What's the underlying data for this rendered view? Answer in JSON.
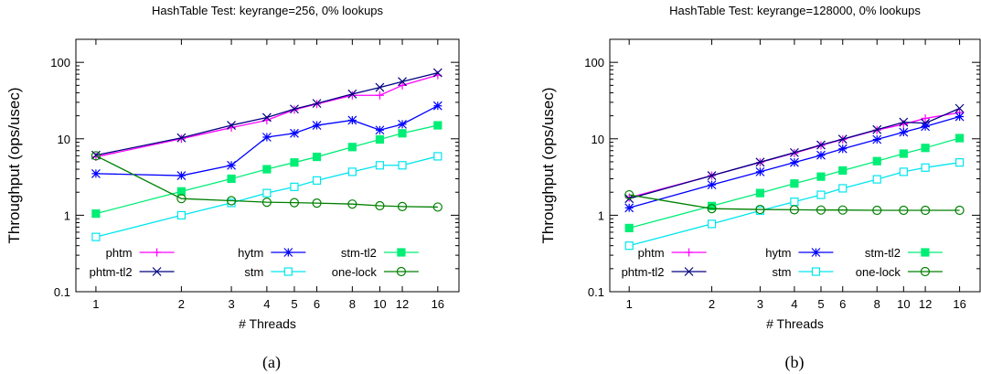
{
  "chart_data": [
    {
      "type": "line",
      "title": "HashTable Test: keyrange=256, 0% lookups",
      "xlabel": "# Threads",
      "ylabel": "Throughput (ops/usec)",
      "caption": "(a)",
      "x_scale": "log",
      "y_scale": "log",
      "xlim": [
        0.85,
        19
      ],
      "ylim": [
        0.1,
        200
      ],
      "x_ticks": [
        1,
        2,
        3,
        4,
        5,
        6,
        8,
        10,
        12,
        16
      ],
      "y_ticks": [
        0.1,
        1,
        10,
        100
      ],
      "y_tick_labels": [
        "0.1",
        "1",
        "10",
        "100"
      ],
      "legend_position": "bottom",
      "x": [
        1,
        2,
        3,
        4,
        5,
        6,
        8,
        10,
        12,
        16
      ],
      "series": [
        {
          "name": "phtm",
          "color": "#ff00ff",
          "marker": "plus",
          "values": [
            5.8,
            10.0,
            14.0,
            17.5,
            24.0,
            28.5,
            37.0,
            37.0,
            50.0,
            68.0
          ]
        },
        {
          "name": "phtm-tl2",
          "color": "#000080",
          "marker": "x",
          "values": [
            6.1,
            10.3,
            15.0,
            19.0,
            24.5,
            29.0,
            38.5,
            47.0,
            56.0,
            73.0
          ]
        },
        {
          "name": "hytm",
          "color": "#0000ff",
          "marker": "asterisk",
          "values": [
            3.5,
            3.3,
            4.5,
            10.5,
            11.8,
            15.0,
            17.5,
            13.0,
            15.5,
            27.0
          ]
        },
        {
          "name": "stm",
          "color": "#00e5ee",
          "marker": "open-square",
          "values": [
            0.52,
            1.0,
            1.45,
            1.95,
            2.35,
            2.85,
            3.7,
            4.5,
            4.5,
            5.9
          ]
        },
        {
          "name": "stm-tl2",
          "color": "#00ee76",
          "marker": "filled-square",
          "values": [
            1.05,
            2.05,
            3.0,
            4.0,
            4.9,
            5.8,
            7.8,
            9.8,
            11.8,
            15.0
          ]
        },
        {
          "name": "one-lock",
          "color": "#008000",
          "marker": "open-circle",
          "values": [
            6.0,
            1.65,
            1.55,
            1.48,
            1.46,
            1.44,
            1.4,
            1.33,
            1.3,
            1.28
          ]
        }
      ]
    },
    {
      "type": "line",
      "title": "HashTable Test: keyrange=128000, 0% lookups",
      "xlabel": "# Threads",
      "ylabel": "Throughput (ops/usec)",
      "caption": "(b)",
      "x_scale": "log",
      "y_scale": "log",
      "xlim": [
        0.85,
        19
      ],
      "ylim": [
        0.1,
        200
      ],
      "x_ticks": [
        1,
        2,
        3,
        4,
        5,
        6,
        8,
        10,
        12,
        16
      ],
      "y_ticks": [
        0.1,
        1,
        10,
        100
      ],
      "y_tick_labels": [
        "0.1",
        "1",
        "10",
        "100"
      ],
      "legend_position": "bottom",
      "x": [
        1,
        2,
        3,
        4,
        5,
        6,
        8,
        10,
        12,
        16
      ],
      "series": [
        {
          "name": "phtm",
          "color": "#ff00ff",
          "marker": "plus",
          "values": [
            1.7,
            3.3,
            4.9,
            6.5,
            8.2,
            9.8,
            13.0,
            15.5,
            18.5,
            22.0
          ]
        },
        {
          "name": "phtm-tl2",
          "color": "#000080",
          "marker": "x",
          "values": [
            1.65,
            3.3,
            4.95,
            6.6,
            8.3,
            9.9,
            13.2,
            16.5,
            16.0,
            25.0
          ]
        },
        {
          "name": "hytm",
          "color": "#0000ff",
          "marker": "asterisk",
          "values": [
            1.25,
            2.5,
            3.7,
            4.9,
            6.1,
            7.4,
            9.8,
            12.2,
            14.5,
            19.5
          ]
        },
        {
          "name": "stm",
          "color": "#00e5ee",
          "marker": "open-square",
          "values": [
            0.4,
            0.77,
            1.15,
            1.5,
            1.85,
            2.25,
            2.95,
            3.7,
            4.2,
            4.9
          ]
        },
        {
          "name": "stm-tl2",
          "color": "#00ee76",
          "marker": "filled-square",
          "values": [
            0.68,
            1.32,
            1.95,
            2.6,
            3.2,
            3.85,
            5.1,
            6.4,
            7.6,
            10.2
          ]
        },
        {
          "name": "one-lock",
          "color": "#008000",
          "marker": "open-circle",
          "values": [
            1.85,
            1.22,
            1.19,
            1.18,
            1.17,
            1.17,
            1.16,
            1.16,
            1.16,
            1.16
          ]
        }
      ]
    }
  ]
}
